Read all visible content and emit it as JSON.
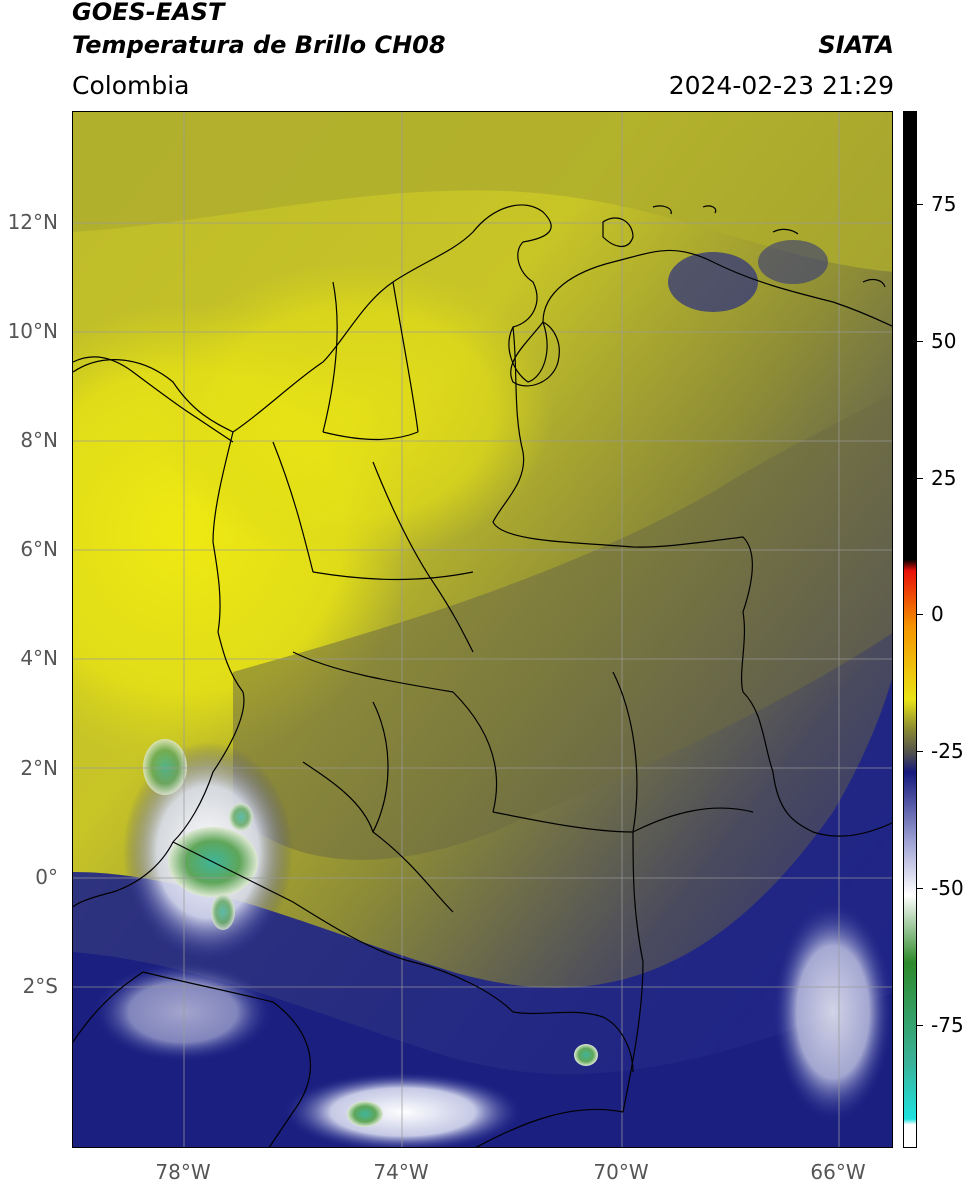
{
  "header": {
    "title_line1": "GOES-EAST",
    "title_line2": "Temperatura de Brillo CH08",
    "source": "SIATA",
    "region": "Colombia",
    "timestamp": "2024-02-23 21:29"
  },
  "map": {
    "lat_ticks": [
      "12°N",
      "10°N",
      "8°N",
      "6°N",
      "4°N",
      "2°N",
      "0°",
      "2°S"
    ],
    "lon_ticks": [
      "78°W",
      "74°W",
      "70°W",
      "66°W"
    ],
    "grid": true
  },
  "colorbar": {
    "ticks": [
      "75",
      "50",
      "25",
      "0",
      "-25",
      "-50",
      "-75"
    ],
    "range": [
      -95,
      90
    ],
    "stops": [
      {
        "value": 90,
        "color": "#000000"
      },
      {
        "value": 10,
        "color": "#000000"
      },
      {
        "value": 8,
        "color": "#e8100a"
      },
      {
        "value": -2,
        "color": "#f59500"
      },
      {
        "value": -15,
        "color": "#e9e417"
      },
      {
        "value": -20,
        "color": "#8f8f30"
      },
      {
        "value": -25,
        "color": "#4b4b52"
      },
      {
        "value": -28,
        "color": "#16197d"
      },
      {
        "value": -40,
        "color": "#9a9ed2"
      },
      {
        "value": -50,
        "color": "#ffffff"
      },
      {
        "value": -62,
        "color": "#2e8a2a"
      },
      {
        "value": -80,
        "color": "#3ab39a"
      },
      {
        "value": -90,
        "color": "#1de3df"
      },
      {
        "value": -91,
        "color": "#ffffff"
      }
    ]
  },
  "colors": {
    "clear_air": "#d8d41e",
    "moist_mid": "#8c8c2e",
    "cloud_cold": "#20268f",
    "deep_convection": "#5aa860"
  }
}
